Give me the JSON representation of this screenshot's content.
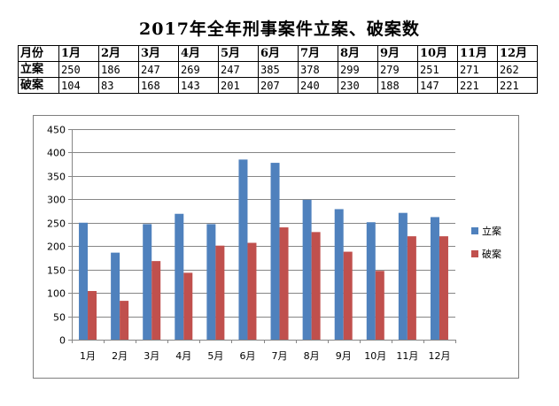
{
  "title": "2017年全年刑事案件立案、破案数",
  "table": {
    "header_label": "月份",
    "months": [
      "1月",
      "2月",
      "3月",
      "4月",
      "5月",
      "6月",
      "7月",
      "8月",
      "9月",
      "10月",
      "11月",
      "12月"
    ],
    "rows": [
      {
        "label": "立案",
        "values": [
          250,
          186,
          247,
          269,
          247,
          385,
          378,
          299,
          279,
          251,
          271,
          262
        ]
      },
      {
        "label": "破案",
        "values": [
          104,
          83,
          168,
          143,
          201,
          207,
          240,
          230,
          188,
          147,
          221,
          221
        ]
      }
    ]
  },
  "chart_data": {
    "type": "bar",
    "categories": [
      "1月",
      "2月",
      "3月",
      "4月",
      "5月",
      "6月",
      "7月",
      "8月",
      "9月",
      "10月",
      "11月",
      "12月"
    ],
    "series": [
      {
        "name": "立案",
        "color": "#4f81bd",
        "values": [
          250,
          186,
          247,
          269,
          247,
          385,
          378,
          299,
          279,
          251,
          271,
          262
        ]
      },
      {
        "name": "破案",
        "color": "#c0504d",
        "values": [
          104,
          83,
          168,
          143,
          201,
          207,
          240,
          230,
          188,
          147,
          221,
          221
        ]
      }
    ],
    "ylim": [
      0,
      450
    ],
    "yticks": [
      0,
      50,
      100,
      150,
      200,
      250,
      300,
      350,
      400,
      450
    ],
    "grid": true,
    "legend_position": "right"
  }
}
